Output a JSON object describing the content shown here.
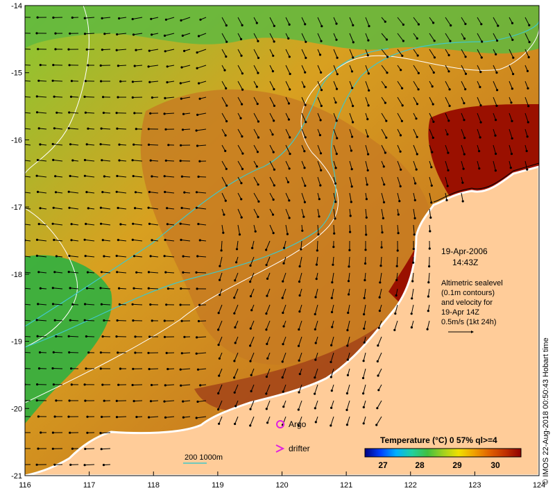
{
  "axes": {
    "x_ticks": [
      "116",
      "117",
      "118",
      "119",
      "120",
      "121",
      "122",
      "123",
      "124"
    ],
    "y_ticks": [
      "-14",
      "-15",
      "-16",
      "-17",
      "-18",
      "-19",
      "-20",
      "-21"
    ],
    "x_range": [
      116,
      124
    ],
    "y_range": [
      -21,
      -14
    ]
  },
  "annotation": {
    "date": "19-Apr-2006",
    "time": "14:43Z",
    "desc_lines": [
      "Altimetric sealevel",
      "(0.1m contours)",
      "and velocity for",
      "19-Apr 14Z",
      "0.5m/s (1kt 24h)"
    ]
  },
  "legend": {
    "argo_label": "Argo",
    "drifter_label": "drifter",
    "argo_color": "#e020e0",
    "drifter_color": "#e020e0",
    "isobath_label": "200  1000m",
    "isobath_color": "#40c8c8"
  },
  "colorbar": {
    "title": "Temperature (°C) 0 57% ql>=4",
    "ticks": [
      "27",
      "28",
      "29",
      "30"
    ],
    "colors": [
      "#000080",
      "#0040ff",
      "#00b0ff",
      "#20d0a0",
      "#40c040",
      "#a0d020",
      "#f0e000",
      "#f0a000",
      "#e06000",
      "#c03000",
      "#900000"
    ]
  },
  "credit": "© IMOS 22-Aug-2018 00:50:43 Hobart time",
  "colors": {
    "land": "#ffcc99",
    "coast": "#ffffff",
    "warm_core": "#c87a1e",
    "very_warm": "#9a1000"
  }
}
